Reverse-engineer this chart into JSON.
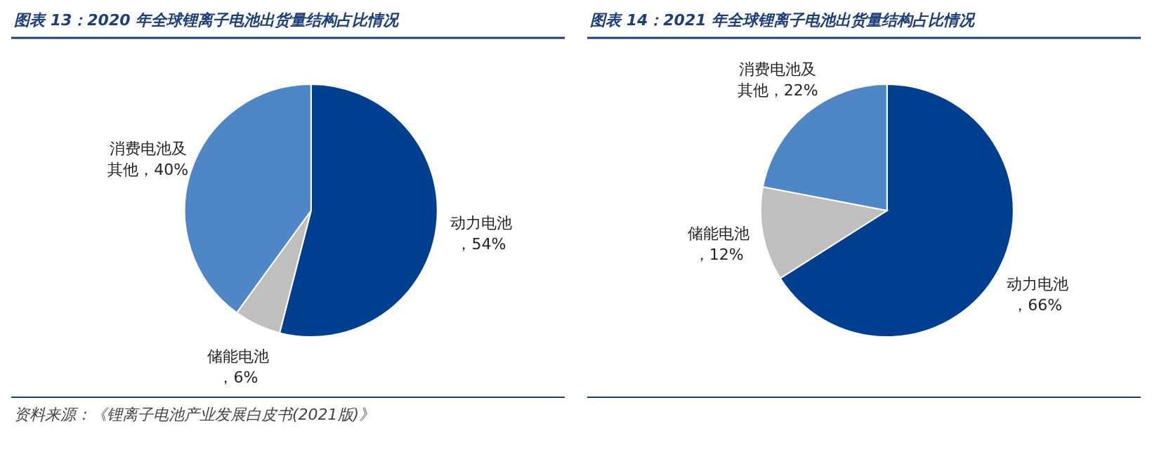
{
  "chart_data": [
    {
      "type": "pie",
      "title": "图表 13：2020 年全球锂离子电池出货量结构占比情况",
      "categories": [
        "动力电池",
        "储能电池",
        "消费电池及其他"
      ],
      "values": [
        54,
        6,
        40
      ],
      "value_labels": [
        "，54%",
        "，6%",
        "，40%"
      ],
      "colors": [
        "#003f8f",
        "#bfbfbf",
        "#4f86c6"
      ],
      "annotations": [
        "资料来源：《锂离子电池产业发展白皮书(2021版)》"
      ]
    },
    {
      "type": "pie",
      "title": "图表 14：2021 年全球锂离子电池出货量结构占比情况",
      "categories": [
        "动力电池",
        "储能电池",
        "消费电池及其他"
      ],
      "values": [
        66,
        12,
        22
      ],
      "value_labels": [
        "，66%",
        "，12%",
        "，22%"
      ],
      "colors": [
        "#003f8f",
        "#bfbfbf",
        "#4f86c6"
      ]
    }
  ]
}
